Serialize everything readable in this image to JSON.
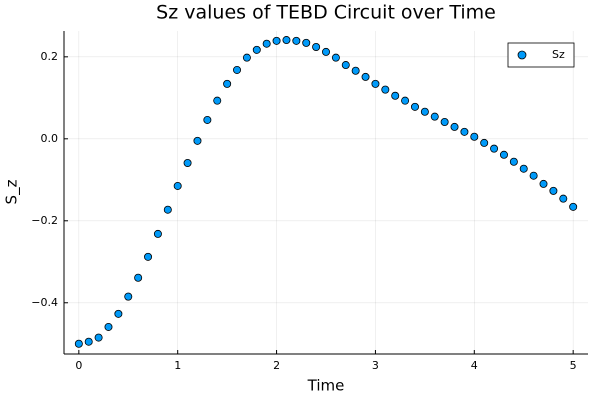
{
  "chart_data": {
    "type": "scatter",
    "title": "Sz values of TEBD Circuit over Time",
    "x_label": "Time",
    "y_label": "S_z",
    "x": [
      0,
      0.1,
      0.2,
      0.3,
      0.4,
      0.5,
      0.6,
      0.7,
      0.8,
      0.9,
      1,
      1.1,
      1.2,
      1.3,
      1.4,
      1.5,
      1.6,
      1.7,
      1.8,
      1.9,
      2,
      2.1,
      2.2,
      2.3,
      2.4,
      2.5,
      2.6,
      2.7,
      2.8,
      2.9,
      3,
      3.1,
      3.2,
      3.3,
      3.4,
      3.5,
      3.6,
      3.7,
      3.8,
      3.9,
      4,
      4.1,
      4.2,
      4.3,
      4.4,
      4.5,
      4.6,
      4.7,
      4.8,
      4.9,
      5
    ],
    "series": [
      {
        "name": "Sz",
        "color": "#009af9",
        "values": [
          -0.5,
          -0.495,
          -0.485,
          -0.459,
          -0.427,
          -0.385,
          -0.339,
          -0.288,
          -0.232,
          -0.173,
          -0.115,
          -0.059,
          -0.005,
          0.046,
          0.093,
          0.134,
          0.168,
          0.198,
          0.217,
          0.232,
          0.239,
          0.241,
          0.239,
          0.234,
          0.224,
          0.212,
          0.198,
          0.18,
          0.166,
          0.151,
          0.134,
          0.12,
          0.105,
          0.093,
          0.078,
          0.066,
          0.054,
          0.041,
          0.029,
          0.017,
          0.005,
          -0.01,
          -0.024,
          -0.039,
          -0.056,
          -0.073,
          -0.09,
          -0.11,
          -0.127,
          -0.146,
          -0.166
        ]
      }
    ],
    "xlim": [
      -0.15,
      5.15
    ],
    "xticks": [
      0,
      1,
      2,
      3,
      4,
      5
    ],
    "ylim": [
      -0.525,
      0.263
    ],
    "yticks": [
      {
        "value": -0.4,
        "label": "−0.4"
      },
      {
        "value": -0.2,
        "label": "−0.2"
      },
      {
        "value": 0,
        "label": "0.0"
      },
      0.2
    ],
    "grid": true,
    "legend_position": "top-right"
  }
}
